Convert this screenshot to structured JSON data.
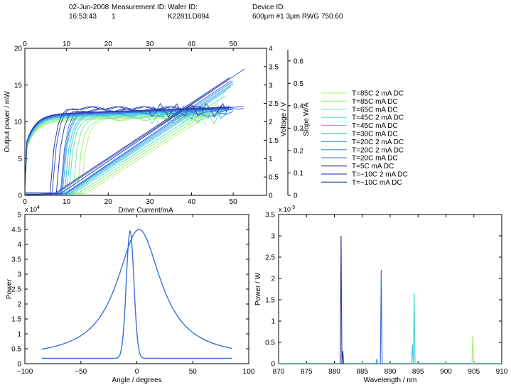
{
  "header": {
    "date": "02-Jun-2008",
    "time": "16:53:43",
    "measurement_label": "Measurement ID:",
    "measurement_value": "1",
    "wafer_label": "Wafer ID:",
    "wafer_value": "K2281LD894",
    "device_label": "Device ID:",
    "device_value": "600μm #1 3μm RWG 750.60"
  },
  "colors": {
    "T85_2mA": "#b8f28a",
    "T85": "#9cef7c",
    "T65": "#7de5a0",
    "T45_2mA": "#5edfc4",
    "T45": "#4bd4d8",
    "T30": "#3cc0e6",
    "T20_2mA": "#3aa6ec",
    "T20_2mA_b": "#3b86e6",
    "T20": "#3c6ee0",
    "T5": "#333fa6",
    "Tm10_2mA": "#3a55d0",
    "Tm10": "#2c3aa0"
  },
  "chart_data": [
    {
      "type": "line",
      "id": "liv",
      "xlabel": "Drive Current/mA",
      "ylabel": "Output power / mW",
      "y2label": "Voltage / V",
      "y3label": "Slope W/A",
      "xlim": [
        0,
        58
      ],
      "xticks": [
        0,
        10,
        20,
        30,
        40,
        50
      ],
      "top_xticks": [
        0,
        10,
        20,
        30,
        40,
        50
      ],
      "ylim": [
        0,
        20
      ],
      "yticks": [
        0,
        5,
        10,
        15,
        20
      ],
      "y2lim": [
        0,
        4
      ],
      "y2ticks": [
        "0",
        "0.5",
        "1",
        "1.5",
        "2",
        "2.5",
        "3",
        "3.5",
        "4"
      ],
      "y3lim": [
        0,
        0.65
      ],
      "y3ticks": [
        "0",
        "0.1",
        "0.2",
        "0.3",
        "0.4",
        "0.5",
        "0.6"
      ],
      "legend": "right",
      "series": [
        {
          "name": "T=85C 2 mA DC",
          "color_key": "T85_2mA",
          "threshold": 14.5,
          "slope": 0.37,
          "max_power": 11.0,
          "voltage": 2.0,
          "slope_wa": 0.34
        },
        {
          "name": "T=85C  mA DC",
          "color_key": "T85",
          "threshold": 13.5,
          "slope": 0.37,
          "max_power": 11.5,
          "voltage": 2.02,
          "slope_wa": 0.34
        },
        {
          "name": "T=65C  mA DC",
          "color_key": "T65",
          "threshold": 12.5,
          "slope": 0.37,
          "max_power": 12.5,
          "voltage": 2.05,
          "slope_wa": 0.35
        },
        {
          "name": "T=45C 2 mA DC",
          "color_key": "T45_2mA",
          "threshold": 11.5,
          "slope": 0.37,
          "max_power": 13.5,
          "voltage": 2.08,
          "slope_wa": 0.35
        },
        {
          "name": "T=45C  mA DC",
          "color_key": "T45",
          "threshold": 11.0,
          "slope": 0.38,
          "max_power": 14.2,
          "voltage": 2.1,
          "slope_wa": 0.36
        },
        {
          "name": "T=30C  mA DC",
          "color_key": "T30",
          "threshold": 10.5,
          "slope": 0.38,
          "max_power": 14.8,
          "voltage": 2.12,
          "slope_wa": 0.36
        },
        {
          "name": "T=20C 2 mA DC",
          "color_key": "T20_2mA",
          "threshold": 10.0,
          "slope": 0.38,
          "max_power": 15.2,
          "voltage": 2.14,
          "slope_wa": 0.37
        },
        {
          "name": "T=20C 2 mA DC",
          "color_key": "T20_2mA_b",
          "threshold": 9.7,
          "slope": 0.385,
          "max_power": 15.5,
          "voltage": 2.15,
          "slope_wa": 0.37
        },
        {
          "name": "T=20C  mA DC",
          "color_key": "T20",
          "threshold": 9.5,
          "slope": 0.39,
          "max_power": 15.6,
          "voltage": 2.16,
          "slope_wa": 0.38
        },
        {
          "name": "T=5C  mA DC",
          "color_key": "T5",
          "threshold": 8.5,
          "slope": 0.39,
          "max_power": 15.8,
          "voltage": 2.18,
          "slope_wa": 0.38
        },
        {
          "name": "T=−10C 2 mA DC",
          "color_key": "Tm10_2mA",
          "threshold": 7.5,
          "slope": 0.38,
          "max_power": 17.2,
          "voltage": 2.2,
          "slope_wa": 0.39
        },
        {
          "name": "T=−10C  mA DC",
          "color_key": "Tm10",
          "threshold": 7.0,
          "slope": 0.38,
          "max_power": 16.0,
          "voltage": 2.2,
          "slope_wa": 0.39
        }
      ]
    },
    {
      "type": "line",
      "id": "farfield",
      "xlabel": "Angle / degrees",
      "ylabel": "Power",
      "exponent": "x 10",
      "exponent_power": "4",
      "xlim": [
        -100,
        100
      ],
      "xticks": [
        -100,
        -50,
        0,
        50,
        100
      ],
      "ylim": [
        0,
        5
      ],
      "yticks": [
        0,
        0.5,
        1,
        1.5,
        2,
        2.5,
        3,
        3.5,
        4,
        4.5,
        5
      ],
      "series": [
        {
          "label": "narrow",
          "color": "#3a6fd8",
          "center": -6,
          "fwhm": 8,
          "peak": 4.45,
          "floor": 0.18,
          "xrange": [
            -85,
            85
          ]
        },
        {
          "label": "wide",
          "color": "#3a6fd8",
          "center": 2,
          "fwhm": 48,
          "peak": 4.5,
          "floor": 0.18,
          "xrange": [
            -85,
            85
          ]
        }
      ]
    },
    {
      "type": "line",
      "id": "spectrum",
      "xlabel": "Wavelength / nm",
      "ylabel": "Power / W",
      "exponent": "x 10",
      "exponent_power": "-5",
      "xlim": [
        870,
        910
      ],
      "xticks": [
        870,
        875,
        880,
        885,
        890,
        895,
        900,
        905,
        910
      ],
      "ylim": [
        0,
        3.5
      ],
      "yticks": [
        "0",
        "0.5",
        "1",
        "1.5",
        "2",
        "2.5",
        "3",
        "3.5"
      ],
      "peaks": [
        {
          "color_key": "T5",
          "wavelength": 881.2,
          "power": 3.0
        },
        {
          "color_key": "Tm10",
          "wavelength": 881.5,
          "power": 0.3
        },
        {
          "color_key": "T20",
          "wavelength": 888.4,
          "power": 2.2
        },
        {
          "color_key": "T20_2mA",
          "wavelength": 887.6,
          "power": 0.12
        },
        {
          "color_key": "T45",
          "wavelength": 894.3,
          "power": 1.65
        },
        {
          "color_key": "T30",
          "wavelength": 894.0,
          "power": 0.45
        },
        {
          "color_key": "T85",
          "wavelength": 904.8,
          "power": 0.65
        }
      ]
    }
  ]
}
